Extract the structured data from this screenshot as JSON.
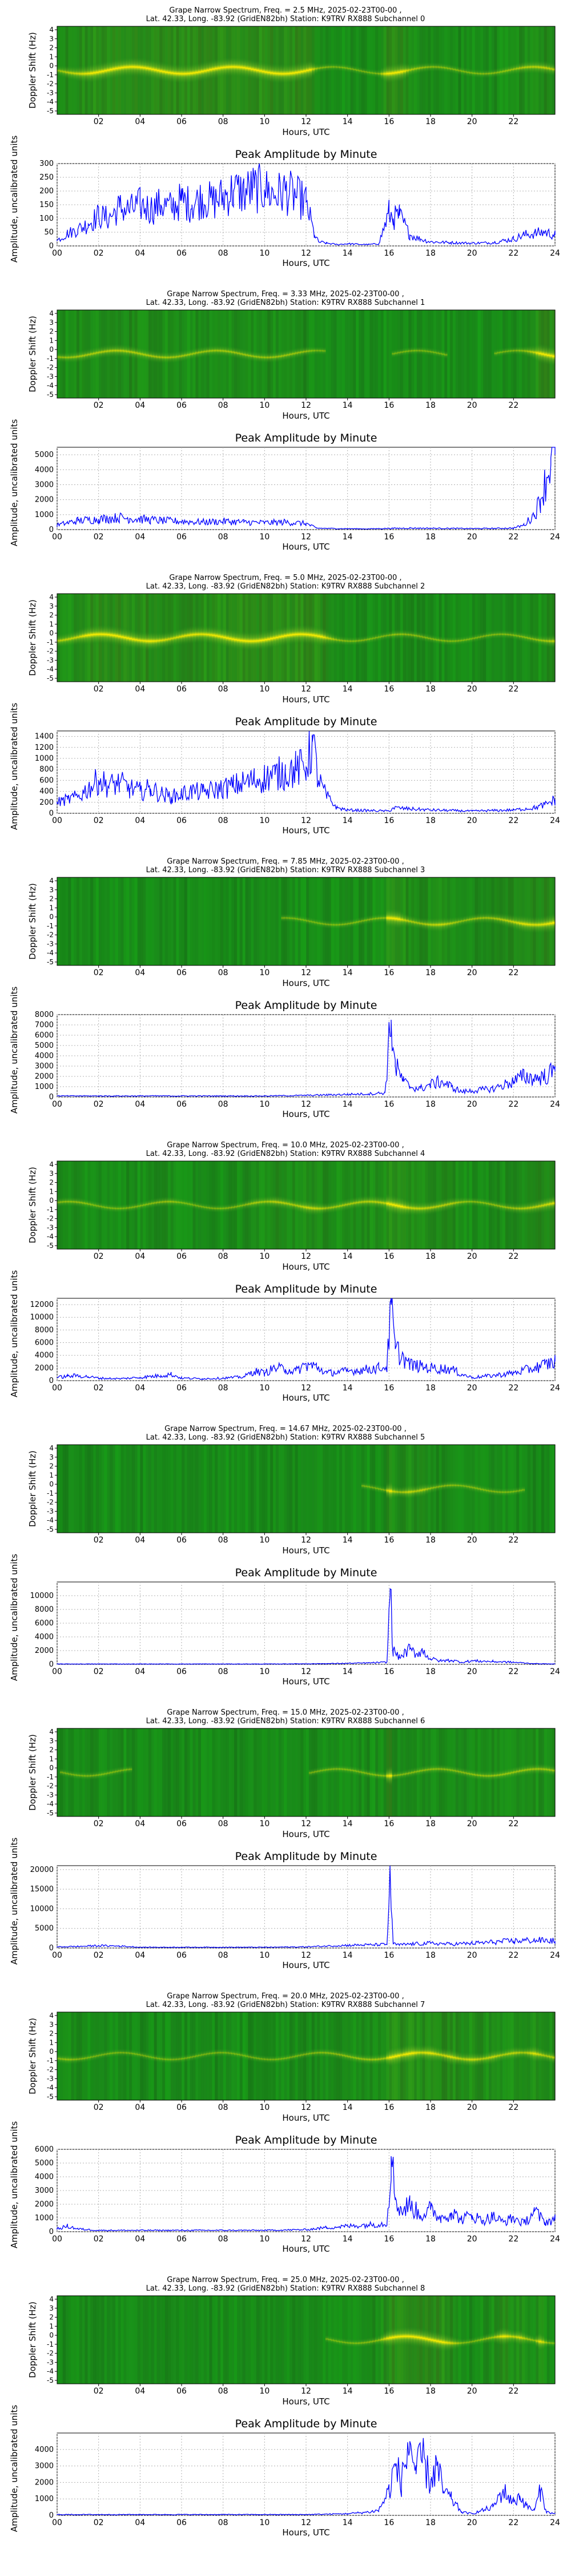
{
  "common": {
    "header_line2": "Lat.  42.33, Long. -83.92 (GridEN82bh) Station: K9TRV RX888 Subchannel",
    "spectrogram_ylabel": "Doppler Shift (Hz)",
    "amplitude_title": "Peak Amplitude by Minute",
    "amplitude_ylabel": "Amplitude, uncalibrated units",
    "xlabel": "Hours, UTC",
    "spectrogram_xticks": [
      "02",
      "04",
      "06",
      "08",
      "10",
      "12",
      "14",
      "16",
      "18",
      "20",
      "22"
    ],
    "amplitude_xticks": [
      "00",
      "02",
      "04",
      "06",
      "08",
      "10",
      "12",
      "14",
      "16",
      "18",
      "20",
      "22",
      "24"
    ],
    "doppler_yticks": [
      "4",
      "3",
      "2",
      "1",
      "0",
      "-1",
      "-2",
      "-3",
      "-4",
      "-5"
    ],
    "colors": {
      "spectrogram_background": "#1c8a1c",
      "spectrogram_peak": "#ffee00",
      "line": "#0000ff",
      "grid": "#b0b0b0"
    }
  },
  "channels": [
    {
      "subchannel": "0",
      "frequency_text": "Grape Narrow Spectrum, Freq. = 2.5 MHz, 2025-02-23T00-00 ,",
      "amplitude_ylim": [
        0,
        300
      ],
      "amplitude_yticks": [
        "0",
        "50",
        "100",
        "150",
        "200",
        "250",
        "300"
      ]
    },
    {
      "subchannel": "1",
      "frequency_text": "Grape Narrow Spectrum, Freq. = 3.33 MHz, 2025-02-23T00-00 ,",
      "amplitude_ylim": [
        0,
        5500
      ],
      "amplitude_yticks": [
        "0",
        "1000",
        "2000",
        "3000",
        "4000",
        "5000"
      ]
    },
    {
      "subchannel": "2",
      "frequency_text": "Grape Narrow Spectrum, Freq. = 5.0 MHz, 2025-02-23T00-00 ,",
      "amplitude_ylim": [
        0,
        1500
      ],
      "amplitude_yticks": [
        "0",
        "200",
        "400",
        "600",
        "800",
        "1000",
        "1200",
        "1400"
      ]
    },
    {
      "subchannel": "3",
      "frequency_text": "Grape Narrow Spectrum, Freq. = 7.85 MHz, 2025-02-23T00-00 ,",
      "amplitude_ylim": [
        0,
        8000
      ],
      "amplitude_yticks": [
        "0",
        "1000",
        "2000",
        "3000",
        "4000",
        "5000",
        "6000",
        "7000",
        "8000"
      ]
    },
    {
      "subchannel": "4",
      "frequency_text": "Grape Narrow Spectrum, Freq. = 10.0 MHz, 2025-02-23T00-00 ,",
      "amplitude_ylim": [
        0,
        13000
      ],
      "amplitude_yticks": [
        "0",
        "2000",
        "4000",
        "6000",
        "8000",
        "10000",
        "12000"
      ]
    },
    {
      "subchannel": "5",
      "frequency_text": "Grape Narrow Spectrum, Freq. = 14.67 MHz, 2025-02-23T00-00 ,",
      "amplitude_ylim": [
        0,
        12000
      ],
      "amplitude_yticks": [
        "0",
        "2000",
        "4000",
        "6000",
        "8000",
        "10000"
      ]
    },
    {
      "subchannel": "6",
      "frequency_text": "Grape Narrow Spectrum, Freq. = 15.0 MHz, 2025-02-23T00-00 ,",
      "amplitude_ylim": [
        0,
        21000
      ],
      "amplitude_yticks": [
        "0",
        "5000",
        "10000",
        "15000",
        "20000"
      ]
    },
    {
      "subchannel": "7",
      "frequency_text": "Grape Narrow Spectrum, Freq. = 20.0 MHz, 2025-02-23T00-00 ,",
      "amplitude_ylim": [
        0,
        6000
      ],
      "amplitude_yticks": [
        "0",
        "1000",
        "2000",
        "3000",
        "4000",
        "5000",
        "6000"
      ]
    },
    {
      "subchannel": "8",
      "frequency_text": "Grape Narrow Spectrum, Freq. = 25.0 MHz, 2025-02-23T00-00 ,",
      "amplitude_ylim": [
        0,
        5000
      ],
      "amplitude_yticks": [
        "0",
        "1000",
        "2000",
        "3000",
        "4000"
      ]
    }
  ],
  "chart_data": [
    {
      "type": "line",
      "subchannel": "0",
      "title": "Peak Amplitude by Minute",
      "xlabel": "Hours, UTC",
      "ylabel": "Amplitude, uncalibrated units",
      "xlim": [
        0,
        24
      ],
      "ylim": [
        0,
        300
      ],
      "grid": true,
      "x": [
        0,
        0.5,
        1,
        1.5,
        2,
        2.5,
        3,
        3.5,
        4,
        4.5,
        5,
        5.5,
        6,
        6.5,
        7,
        7.5,
        8,
        8.5,
        9,
        9.5,
        10,
        10.5,
        11,
        11.5,
        12,
        12.4,
        12.6,
        13,
        13.5,
        14,
        14.5,
        15,
        15.5,
        16,
        16.2,
        16.5,
        17,
        17.5,
        18,
        19,
        20,
        21,
        22,
        22.5,
        23,
        23.5,
        24
      ],
      "y": [
        20,
        45,
        60,
        80,
        110,
        100,
        140,
        130,
        150,
        135,
        150,
        140,
        165,
        150,
        175,
        160,
        180,
        200,
        195,
        210,
        205,
        185,
        200,
        180,
        160,
        40,
        15,
        10,
        5,
        8,
        6,
        5,
        8,
        120,
        100,
        110,
        40,
        25,
        15,
        12,
        10,
        12,
        25,
        40,
        45,
        50,
        40
      ]
    },
    {
      "type": "line",
      "subchannel": "1",
      "title": "Peak Amplitude by Minute",
      "xlabel": "Hours, UTC",
      "ylabel": "Amplitude, uncalibrated units",
      "xlim": [
        0,
        24
      ],
      "ylim": [
        0,
        5500
      ],
      "grid": true,
      "x": [
        0,
        0.5,
        1,
        1.5,
        2,
        2.5,
        3,
        3.5,
        4,
        4.5,
        5,
        6,
        7,
        8,
        9,
        10,
        11,
        11.5,
        12,
        12.5,
        13,
        14,
        15,
        16,
        17,
        18,
        19,
        20,
        21,
        22,
        22.5,
        23,
        23.3,
        23.6,
        23.8,
        24
      ],
      "y": [
        300,
        450,
        600,
        650,
        700,
        750,
        800,
        750,
        700,
        650,
        600,
        550,
        500,
        550,
        500,
        450,
        500,
        450,
        400,
        100,
        80,
        60,
        50,
        80,
        100,
        90,
        80,
        70,
        80,
        100,
        300,
        1000,
        2000,
        3500,
        4800,
        5000
      ]
    },
    {
      "type": "line",
      "subchannel": "2",
      "title": "Peak Amplitude by Minute",
      "xlabel": "Hours, UTC",
      "ylabel": "Amplitude, uncalibrated units",
      "xlim": [
        0,
        24
      ],
      "ylim": [
        0,
        1500
      ],
      "grid": true,
      "x": [
        0,
        0.5,
        1,
        1.5,
        2,
        2.5,
        3,
        3.5,
        4,
        4.5,
        5,
        5.5,
        6,
        6.5,
        7,
        7.5,
        8,
        8.5,
        9,
        9.5,
        10,
        10.5,
        11,
        11.5,
        12,
        12.3,
        12.6,
        13,
        13.5,
        14,
        15,
        16,
        16.2,
        17,
        18,
        19,
        20,
        21,
        22,
        23,
        23.5,
        24
      ],
      "y": [
        200,
        250,
        300,
        450,
        600,
        500,
        550,
        450,
        400,
        450,
        350,
        300,
        350,
        400,
        380,
        420,
        450,
        500,
        550,
        600,
        650,
        700,
        750,
        800,
        850,
        1300,
        600,
        300,
        100,
        60,
        50,
        40,
        100,
        80,
        60,
        50,
        40,
        50,
        60,
        100,
        150,
        250
      ]
    },
    {
      "type": "line",
      "subchannel": "3",
      "title": "Peak Amplitude by Minute",
      "xlabel": "Hours, UTC",
      "ylabel": "Amplitude, uncalibrated units",
      "xlim": [
        0,
        24
      ],
      "ylim": [
        0,
        8000
      ],
      "grid": true,
      "x": [
        0,
        2,
        4,
        6,
        8,
        10,
        12,
        13,
        14,
        15,
        15.8,
        16.1,
        16.3,
        16.7,
        17,
        17.5,
        18,
        18.5,
        19,
        19.5,
        20,
        21,
        22,
        22.5,
        23,
        23.5,
        24
      ],
      "y": [
        100,
        100,
        100,
        100,
        100,
        100,
        150,
        200,
        250,
        300,
        400,
        7500,
        3000,
        1500,
        1000,
        800,
        1200,
        1500,
        1000,
        500,
        600,
        800,
        1500,
        2000,
        1800,
        2000,
        2500
      ]
    },
    {
      "type": "line",
      "subchannel": "4",
      "title": "Peak Amplitude by Minute",
      "xlabel": "Hours, UTC",
      "ylabel": "Amplitude, uncalibrated units",
      "xlim": [
        0,
        24
      ],
      "ylim": [
        0,
        13000
      ],
      "grid": true,
      "x": [
        0,
        0.5,
        1,
        1.5,
        2,
        3,
        4,
        5,
        5.5,
        6,
        7,
        8,
        9,
        9.5,
        10,
        10.5,
        11,
        11.5,
        12,
        12.5,
        13,
        14,
        15,
        15.5,
        15.9,
        16.1,
        16.3,
        17,
        18,
        19,
        19.5,
        20,
        21,
        22,
        23,
        23.5,
        24
      ],
      "y": [
        500,
        700,
        800,
        600,
        400,
        300,
        500,
        800,
        1000,
        400,
        300,
        400,
        600,
        1500,
        1200,
        2000,
        1800,
        1500,
        2500,
        2200,
        1200,
        1500,
        1800,
        2000,
        2200,
        12000,
        5000,
        2500,
        2000,
        1800,
        1000,
        500,
        800,
        1200,
        2000,
        2500,
        3000
      ]
    },
    {
      "type": "line",
      "subchannel": "5",
      "title": "Peak Amplitude by Minute",
      "xlabel": "Hours, UTC",
      "ylabel": "Amplitude, uncalibrated units",
      "xlim": [
        0,
        24
      ],
      "ylim": [
        0,
        12000
      ],
      "grid": true,
      "x": [
        0,
        2,
        4,
        6,
        8,
        10,
        12,
        13,
        14,
        15,
        15.9,
        16.05,
        16.2,
        16.5,
        17,
        17.3,
        17.6,
        18,
        18.5,
        19,
        19.5,
        20,
        21,
        22,
        23,
        24
      ],
      "y": [
        50,
        50,
        50,
        50,
        50,
        50,
        80,
        100,
        150,
        200,
        300,
        11000,
        2000,
        1000,
        2200,
        1500,
        2000,
        800,
        500,
        600,
        300,
        500,
        400,
        300,
        100,
        50
      ]
    },
    {
      "type": "line",
      "subchannel": "6",
      "title": "Peak Amplitude by Minute",
      "xlabel": "Hours, UTC",
      "ylabel": "Amplitude, uncalibrated units",
      "xlim": [
        0,
        24
      ],
      "ylim": [
        0,
        21000
      ],
      "grid": true,
      "x": [
        0,
        1,
        2,
        3,
        4,
        6,
        8,
        10,
        12,
        13,
        14,
        15,
        15.9,
        16.05,
        16.2,
        16.5,
        17,
        18,
        19,
        20,
        21,
        22,
        23,
        24
      ],
      "y": [
        300,
        400,
        600,
        500,
        200,
        200,
        200,
        200,
        300,
        500,
        700,
        800,
        900,
        20000,
        1000,
        800,
        1000,
        1200,
        1000,
        1200,
        1500,
        1800,
        2000,
        1800
      ]
    },
    {
      "type": "line",
      "subchannel": "7",
      "title": "Peak Amplitude by Minute",
      "xlabel": "Hours, UTC",
      "ylabel": "Amplitude, uncalibrated units",
      "xlim": [
        0,
        24
      ],
      "ylim": [
        0,
        6000
      ],
      "grid": true,
      "x": [
        0,
        0.5,
        1,
        2,
        4,
        6,
        8,
        10,
        12,
        13,
        14,
        15,
        15.9,
        16.1,
        16.3,
        16.6,
        17,
        17.5,
        18,
        18.5,
        19,
        19.5,
        20,
        20.5,
        21,
        21.5,
        22,
        22.5,
        23,
        23.5,
        24
      ],
      "y": [
        200,
        400,
        200,
        100,
        100,
        100,
        100,
        100,
        150,
        300,
        400,
        500,
        600,
        5500,
        2500,
        1500,
        2000,
        1200,
        1600,
        1000,
        1400,
        900,
        1200,
        800,
        1100,
        700,
        1000,
        600,
        1500,
        700,
        900
      ]
    },
    {
      "type": "line",
      "subchannel": "8",
      "title": "Peak Amplitude by Minute",
      "xlabel": "Hours, UTC",
      "ylabel": "Amplitude, uncalibrated units",
      "xlim": [
        0,
        24
      ],
      "ylim": [
        0,
        5000
      ],
      "grid": true,
      "x": [
        0,
        4,
        8,
        12,
        14,
        15,
        15.5,
        16,
        16.3,
        16.6,
        17,
        17.3,
        17.6,
        18,
        18.3,
        18.6,
        19,
        19.5,
        20,
        21,
        21.5,
        22,
        22.3,
        22.6,
        23,
        23.3,
        23.6,
        24
      ],
      "y": [
        50,
        50,
        50,
        50,
        100,
        200,
        300,
        1500,
        3000,
        2000,
        4500,
        2500,
        3500,
        2000,
        3000,
        1500,
        1000,
        200,
        100,
        500,
        1500,
        800,
        1200,
        600,
        300,
        1500,
        200,
        100
      ]
    }
  ]
}
